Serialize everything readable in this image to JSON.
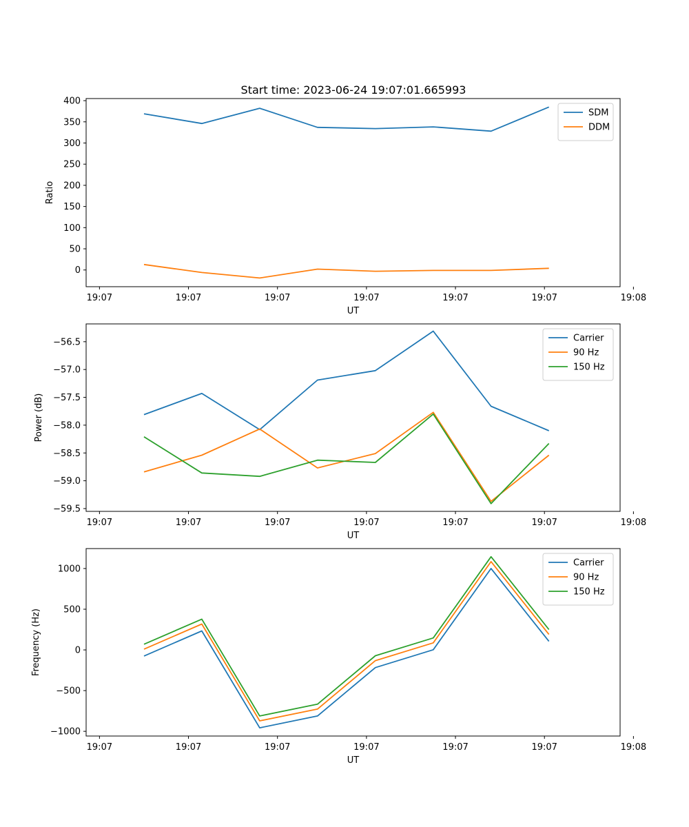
{
  "figure": {
    "title": "Start time: 2023-06-24 19:07:01.665993"
  },
  "chart_data": [
    {
      "type": "line",
      "title": "Start time: 2023-06-24 19:07:01.665993",
      "xlabel": "UT",
      "ylabel": "Ratio",
      "xlim": [
        0.0,
        6.0
      ],
      "ylim": [
        -39.5,
        405.0
      ],
      "xticks": [
        0.15,
        1.15,
        2.15,
        3.15,
        4.15,
        5.15,
        6.15
      ],
      "xtick_labels": [
        "19:07",
        "19:07",
        "19:07",
        "19:07",
        "19:07",
        "19:07",
        "19:08"
      ],
      "yticks": [
        0,
        50,
        100,
        150,
        200,
        250,
        300,
        350,
        400
      ],
      "ytick_labels": [
        "0",
        "50",
        "100",
        "150",
        "200",
        "250",
        "300",
        "350",
        "400"
      ],
      "x": [
        0.65,
        1.3,
        1.95,
        2.6,
        3.25,
        3.9,
        4.55,
        5.2
      ],
      "series": [
        {
          "name": "SDM",
          "color": "#1f77b4",
          "values": [
            369,
            346,
            382,
            337,
            334,
            338,
            328,
            385
          ]
        },
        {
          "name": "DDM",
          "color": "#ff7f0e",
          "values": [
            13,
            -6,
            -19,
            2,
            -3,
            -1,
            -1,
            4
          ]
        }
      ],
      "legend": "upper right",
      "grid": false
    },
    {
      "type": "line",
      "xlabel": "UT",
      "ylabel": "Power (dB)",
      "xlim": [
        0.0,
        6.0
      ],
      "ylim": [
        -59.55,
        -56.18
      ],
      "xticks": [
        0.15,
        1.15,
        2.15,
        3.15,
        4.15,
        5.15,
        6.15
      ],
      "xtick_labels": [
        "19:07",
        "19:07",
        "19:07",
        "19:07",
        "19:07",
        "19:07",
        "19:08"
      ],
      "yticks": [
        -59.5,
        -59.0,
        -58.5,
        -58.0,
        -57.5,
        -57.0,
        -56.5
      ],
      "ytick_labels": [
        "−59.5",
        "−59.0",
        "−58.5",
        "−58.0",
        "−57.5",
        "−57.0",
        "−56.5"
      ],
      "x": [
        0.65,
        1.3,
        1.95,
        2.6,
        3.25,
        3.9,
        4.55,
        5.2
      ],
      "series": [
        {
          "name": "Carrier",
          "color": "#1f77b4",
          "values": [
            -57.81,
            -57.43,
            -58.08,
            -57.19,
            -57.02,
            -56.31,
            -57.66,
            -58.1
          ]
        },
        {
          "name": "90 Hz",
          "color": "#ff7f0e",
          "values": [
            -58.84,
            -58.54,
            -58.07,
            -58.77,
            -58.51,
            -57.77,
            -59.37,
            -58.54
          ]
        },
        {
          "name": "150 Hz",
          "color": "#2ca02c",
          "values": [
            -58.21,
            -58.86,
            -58.92,
            -58.63,
            -58.67,
            -57.8,
            -59.41,
            -58.33
          ]
        }
      ],
      "legend": "upper right",
      "grid": false
    },
    {
      "type": "line",
      "xlabel": "UT",
      "ylabel": "Frequency (Hz)",
      "xlim": [
        0.0,
        6.0
      ],
      "ylim": [
        -1058.0,
        1245.0
      ],
      "xticks": [
        0.15,
        1.15,
        2.15,
        3.15,
        4.15,
        5.15,
        6.15
      ],
      "xtick_labels": [
        "19:07",
        "19:07",
        "19:07",
        "19:07",
        "19:07",
        "19:07",
        "19:08"
      ],
      "yticks": [
        -1000,
        -500,
        0,
        500,
        1000
      ],
      "ytick_labels": [
        "−1000",
        "−500",
        "0",
        "500",
        "1000"
      ],
      "x": [
        0.65,
        1.3,
        1.95,
        2.6,
        3.25,
        3.9,
        4.55,
        5.2
      ],
      "series": [
        {
          "name": "Carrier",
          "color": "#1f77b4",
          "values": [
            -75,
            233,
            -957,
            -812,
            -217,
            2,
            1000,
            105
          ]
        },
        {
          "name": "90 Hz",
          "color": "#ff7f0e",
          "values": [
            10,
            318,
            -872,
            -727,
            -132,
            87,
            1085,
            190
          ]
        },
        {
          "name": "150 Hz",
          "color": "#2ca02c",
          "values": [
            70,
            378,
            -812,
            -667,
            -72,
            147,
            1145,
            250
          ]
        }
      ],
      "legend": "upper right",
      "grid": false
    }
  ]
}
